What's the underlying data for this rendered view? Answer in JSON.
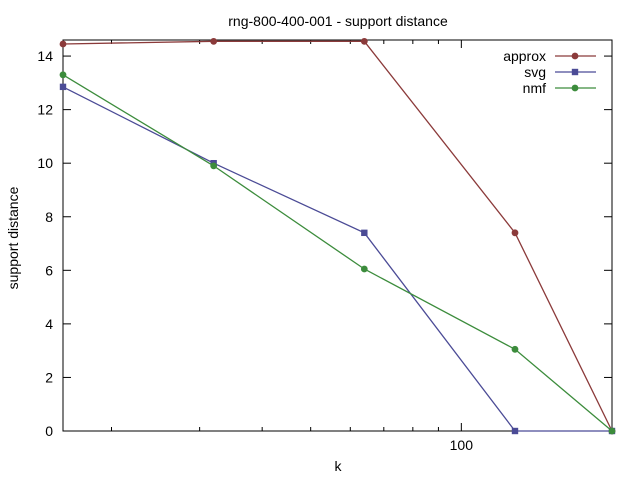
{
  "chart_data": {
    "type": "line",
    "title": "rng-800-400-001 - support distance",
    "xlabel": "k",
    "ylabel": "support distance",
    "xscale": "log",
    "xlim": [
      16,
      200
    ],
    "ylim": [
      0,
      14.6
    ],
    "yticks": [
      0,
      2,
      4,
      6,
      8,
      10,
      12,
      14
    ],
    "xticks_major": [
      100
    ],
    "xticks_minor": [
      20,
      30,
      40,
      50,
      60,
      70,
      80,
      90,
      200
    ],
    "grid": false,
    "legend_position": "top-right",
    "series": [
      {
        "name": "approx",
        "color": "#8b3a3a",
        "marker": "circle",
        "x": [
          16,
          32,
          64,
          128,
          200
        ],
        "y": [
          14.45,
          14.55,
          14.55,
          7.4,
          0
        ]
      },
      {
        "name": "svg",
        "color": "#4b4b96",
        "marker": "square",
        "x": [
          16,
          32,
          64,
          128,
          200
        ],
        "y": [
          12.85,
          10.0,
          7.4,
          0,
          0
        ]
      },
      {
        "name": "nmf",
        "color": "#3c8c3c",
        "marker": "circle",
        "x": [
          16,
          32,
          64,
          128,
          200
        ],
        "y": [
          13.3,
          9.9,
          6.05,
          3.05,
          0
        ]
      }
    ]
  }
}
